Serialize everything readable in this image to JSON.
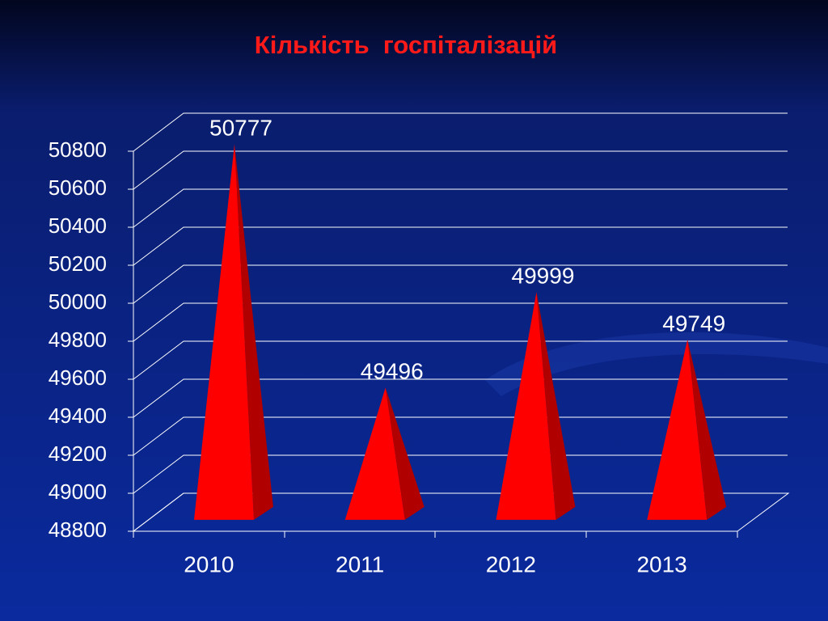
{
  "chart_data": {
    "type": "bar",
    "title": "Кількість  госпіталізацій",
    "categories": [
      "2010",
      "2011",
      "2012",
      "2013"
    ],
    "values": [
      50777,
      49496,
      49999,
      49749
    ],
    "color": "#ff0000",
    "ylim": [
      48800,
      50800
    ],
    "yticks": [
      48800,
      49000,
      49200,
      49400,
      49600,
      49800,
      50000,
      50200,
      50400,
      50600,
      50800
    ],
    "grid": true
  }
}
